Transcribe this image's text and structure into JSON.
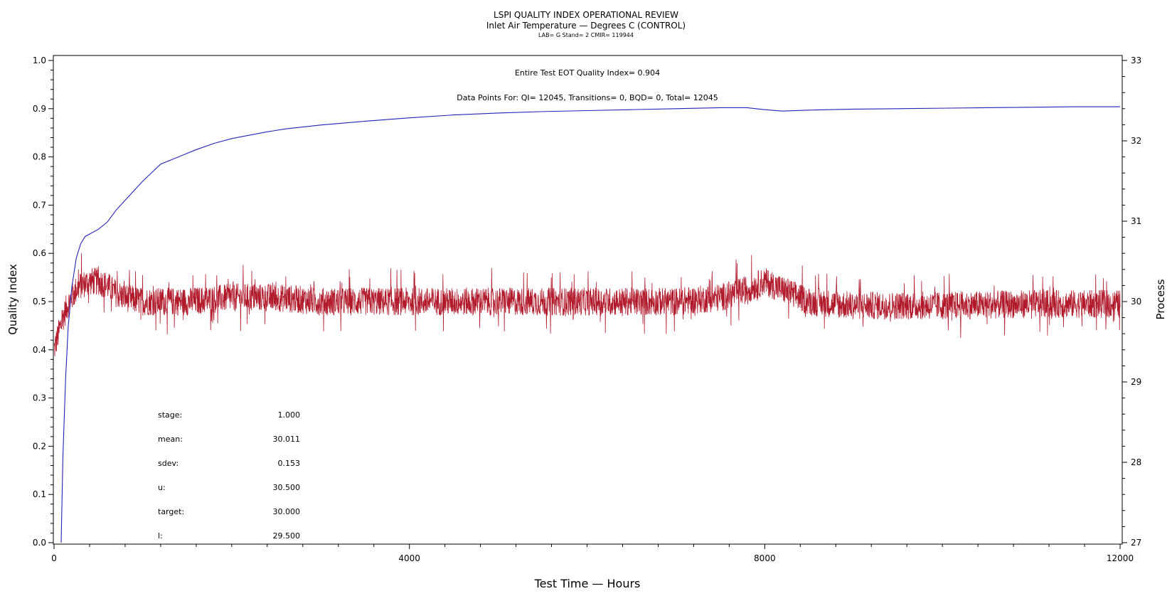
{
  "header": {
    "title": "LSPI QUALITY INDEX OPERATIONAL REVIEW",
    "subtitle": "Inlet Air Temperature — Degrees C (CONTROL)",
    "subsubtitle": "LAB= G Stand= 2 CMIR= 119944"
  },
  "annotations": {
    "eot": "Entire Test EOT Quality Index=   0.904",
    "datapoints": "Data Points For: QI= 12045, Transitions=     0, BQD=     0, Total= 12045"
  },
  "stats": [
    {
      "label": "stage:",
      "value": "1.000"
    },
    {
      "label": "mean:",
      "value": "30.011"
    },
    {
      "label": "sdev:",
      "value": "0.153"
    },
    {
      "label": "u:",
      "value": "30.500"
    },
    {
      "label": "target:",
      "value": "30.000"
    },
    {
      "label": "l:",
      "value": "29.500"
    }
  ],
  "colors": {
    "quality_index": "#2222bb",
    "process": "#b11a2b",
    "axis": "#000000"
  },
  "chart_data": {
    "type": "line",
    "xlabel": "Test Time — Hours",
    "ylabel": "Quality Index",
    "y2label": "Process",
    "xlim": [
      0,
      12000
    ],
    "ylim": [
      0,
      1.0
    ],
    "y2lim": [
      27,
      33
    ],
    "xticks": [
      "0",
      "4000",
      "8000",
      "12000"
    ],
    "yticks": [
      "0.0",
      "0.1",
      "0.2",
      "0.3",
      "0.4",
      "0.5",
      "0.6",
      "0.7",
      "0.8",
      "0.9",
      "1.0"
    ],
    "y2ticks": [
      "27",
      "28",
      "29",
      "30",
      "31",
      "32",
      "33"
    ],
    "series": [
      {
        "axis": "left",
        "x": [
          80,
          100,
          130,
          160,
          200,
          250,
          300,
          350,
          400,
          500,
          600,
          700,
          800,
          900,
          1000,
          1200,
          1400,
          1600,
          1800,
          2000,
          2200,
          2400,
          2600,
          2800,
          3000,
          3500,
          4000,
          4500,
          5000,
          5500,
          6000,
          6500,
          7000,
          7500,
          7800,
          8000,
          8200,
          8500,
          9000,
          9500,
          10000,
          10500,
          11000,
          11500,
          12000
        ],
        "y": [
          0.0,
          0.18,
          0.34,
          0.45,
          0.53,
          0.59,
          0.62,
          0.635,
          0.64,
          0.65,
          0.665,
          0.69,
          0.71,
          0.73,
          0.75,
          0.785,
          0.8,
          0.815,
          0.828,
          0.838,
          0.845,
          0.852,
          0.858,
          0.862,
          0.866,
          0.874,
          0.881,
          0.887,
          0.891,
          0.894,
          0.896,
          0.898,
          0.9,
          0.902,
          0.902,
          0.898,
          0.895,
          0.897,
          0.899,
          0.9,
          0.901,
          0.902,
          0.903,
          0.904,
          0.904
        ]
      },
      {
        "axis": "right",
        "x": [
          0,
          50,
          100,
          150,
          200,
          250,
          300,
          400,
          500,
          600,
          700,
          800,
          1000,
          1500,
          2000,
          2500,
          3000,
          4000,
          5000,
          6000,
          7000,
          7500,
          7800,
          8000,
          8200,
          8500,
          9000,
          10000,
          11000,
          12000
        ],
        "y": [
          29.4,
          29.6,
          29.8,
          29.95,
          30.05,
          30.15,
          30.2,
          30.25,
          30.25,
          30.2,
          30.1,
          30.05,
          30.0,
          30.0,
          30.05,
          30.05,
          30.0,
          30.0,
          30.0,
          30.0,
          30.0,
          30.05,
          30.15,
          30.25,
          30.15,
          30.0,
          29.95,
          29.95,
          29.97,
          29.97
        ]
      }
    ]
  }
}
